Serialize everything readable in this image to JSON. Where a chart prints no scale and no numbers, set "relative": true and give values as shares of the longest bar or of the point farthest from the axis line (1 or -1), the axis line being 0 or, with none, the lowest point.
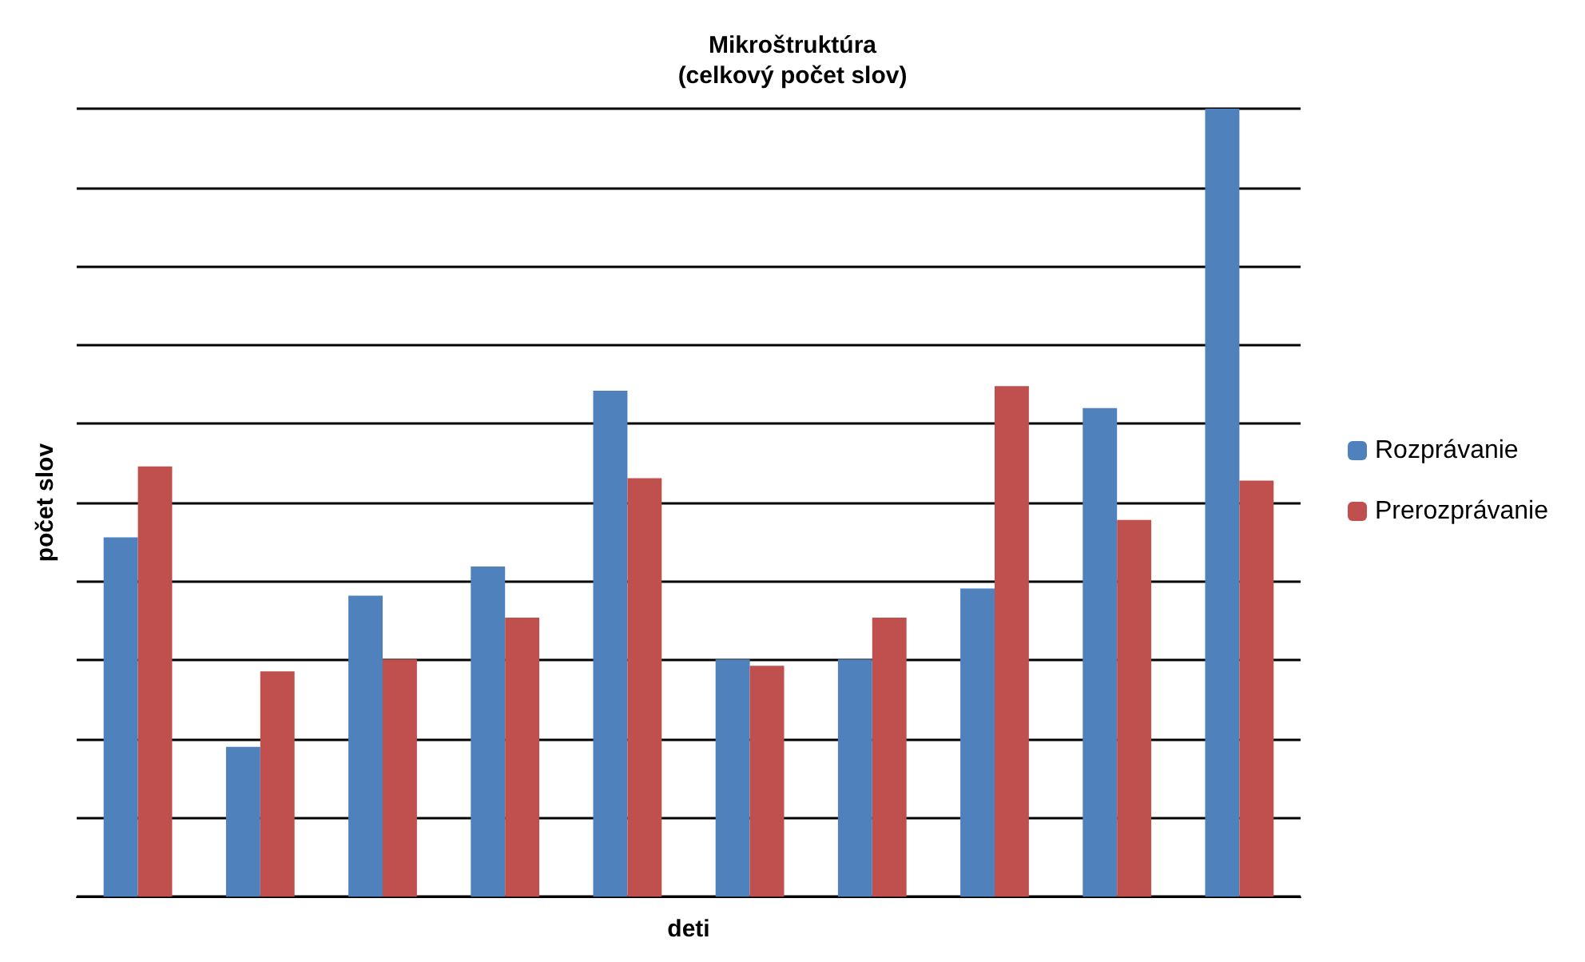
{
  "chart_data": {
    "type": "bar",
    "title": "Mikroštruktúra",
    "subtitle": "(celkový počet slov)",
    "xlabel": "deti",
    "ylabel": "počet slov",
    "categories": [
      null,
      null,
      null,
      null,
      null,
      null,
      null,
      null,
      null,
      null
    ],
    "relative": true,
    "grid": "y",
    "legend": "right",
    "series": [
      {
        "name": "Rozprávanie",
        "color": "#4f81bd",
        "values": [
          0.456,
          0.19,
          0.382,
          0.419,
          0.642,
          0.301,
          0.301,
          0.391,
          0.62,
          1
        ]
      },
      {
        "name": "Prerozprávanie",
        "color": "#c0504d",
        "values": [
          0.546,
          0.286,
          0.301,
          0.354,
          0.531,
          0.293,
          0.354,
          0.648,
          0.478,
          0.528
        ]
      }
    ]
  }
}
